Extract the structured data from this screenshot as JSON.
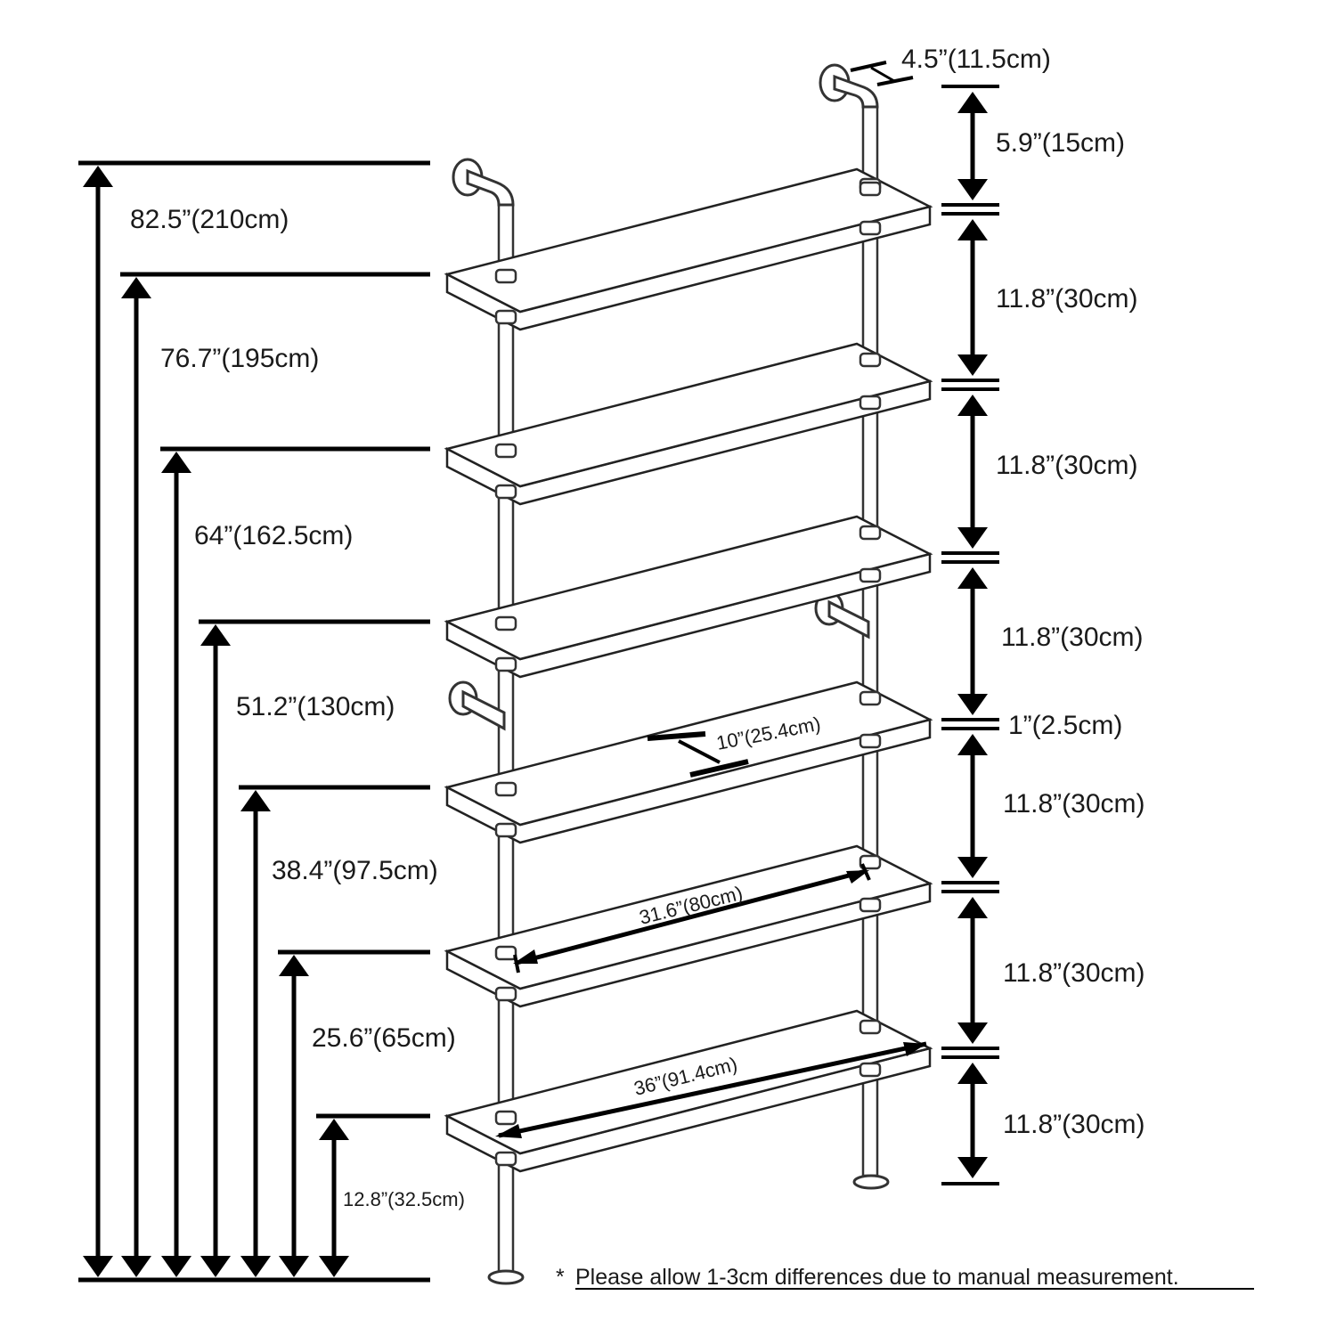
{
  "heights": [
    {
      "label": "82.5”(210cm)"
    },
    {
      "label": "76.7”(195cm)"
    },
    {
      "label": "64”(162.5cm)"
    },
    {
      "label": "51.2”(130cm)"
    },
    {
      "label": "38.4”(97.5cm)"
    },
    {
      "label": "25.6”(65cm)"
    },
    {
      "label": "12.8”(32.5cm)"
    }
  ],
  "right_dims": {
    "top_depth": "4.5”(11.5cm)",
    "top_gap": "5.9”(15cm)",
    "gap1": "11.8”(30cm)",
    "gap2": "11.8”(30cm)",
    "gap3": "11.8”(30cm)",
    "thickness": "1”(2.5cm)",
    "gap4": "11.8”(30cm)",
    "gap5": "11.8”(30cm)",
    "gap6": "11.8”(30cm)"
  },
  "shelf_dims": {
    "depth": "10”(25.4cm)",
    "inner_width": "31.6”(80cm)",
    "outer_width": "36”(91.4cm)"
  },
  "note": {
    "asterisk": "*",
    "text": "Please allow 1-3cm differences due to manual measurement."
  }
}
